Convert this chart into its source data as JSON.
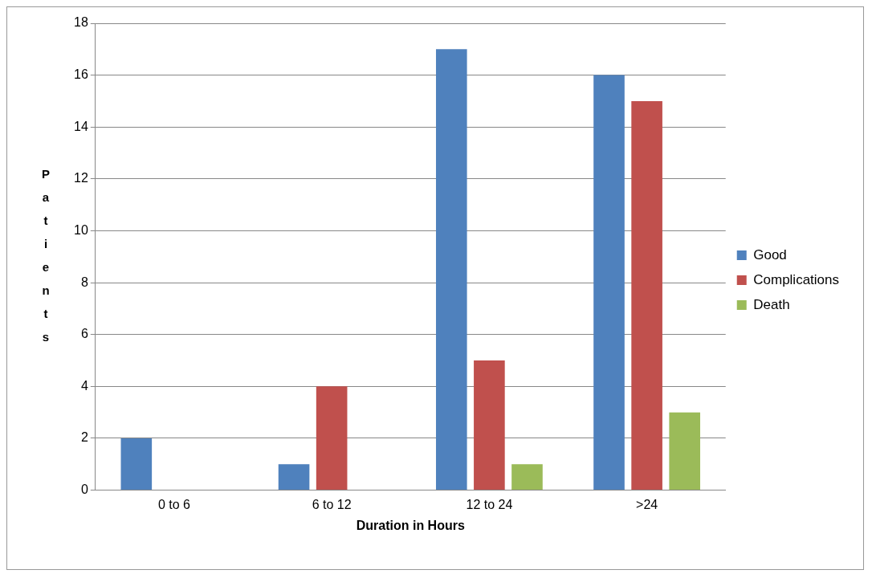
{
  "chart_data": {
    "type": "bar",
    "xlabel": "Duration in Hours",
    "ylabel": "Patients",
    "categories": [
      "0 to 6",
      "6 to 12",
      "12 to 24",
      ">24"
    ],
    "series": [
      {
        "name": "Good",
        "color": "#4f81bd",
        "values": [
          2,
          1,
          17,
          16
        ]
      },
      {
        "name": "Complications",
        "color": "#c0504d",
        "values": [
          0,
          4,
          5,
          15
        ]
      },
      {
        "name": "Death",
        "color": "#9bbb59",
        "values": [
          0,
          0,
          1,
          3
        ]
      }
    ],
    "ylim": [
      0,
      18
    ],
    "yticks": [
      0,
      2,
      4,
      6,
      8,
      10,
      12,
      14,
      16,
      18
    ],
    "grid": "y",
    "legend": "right"
  }
}
